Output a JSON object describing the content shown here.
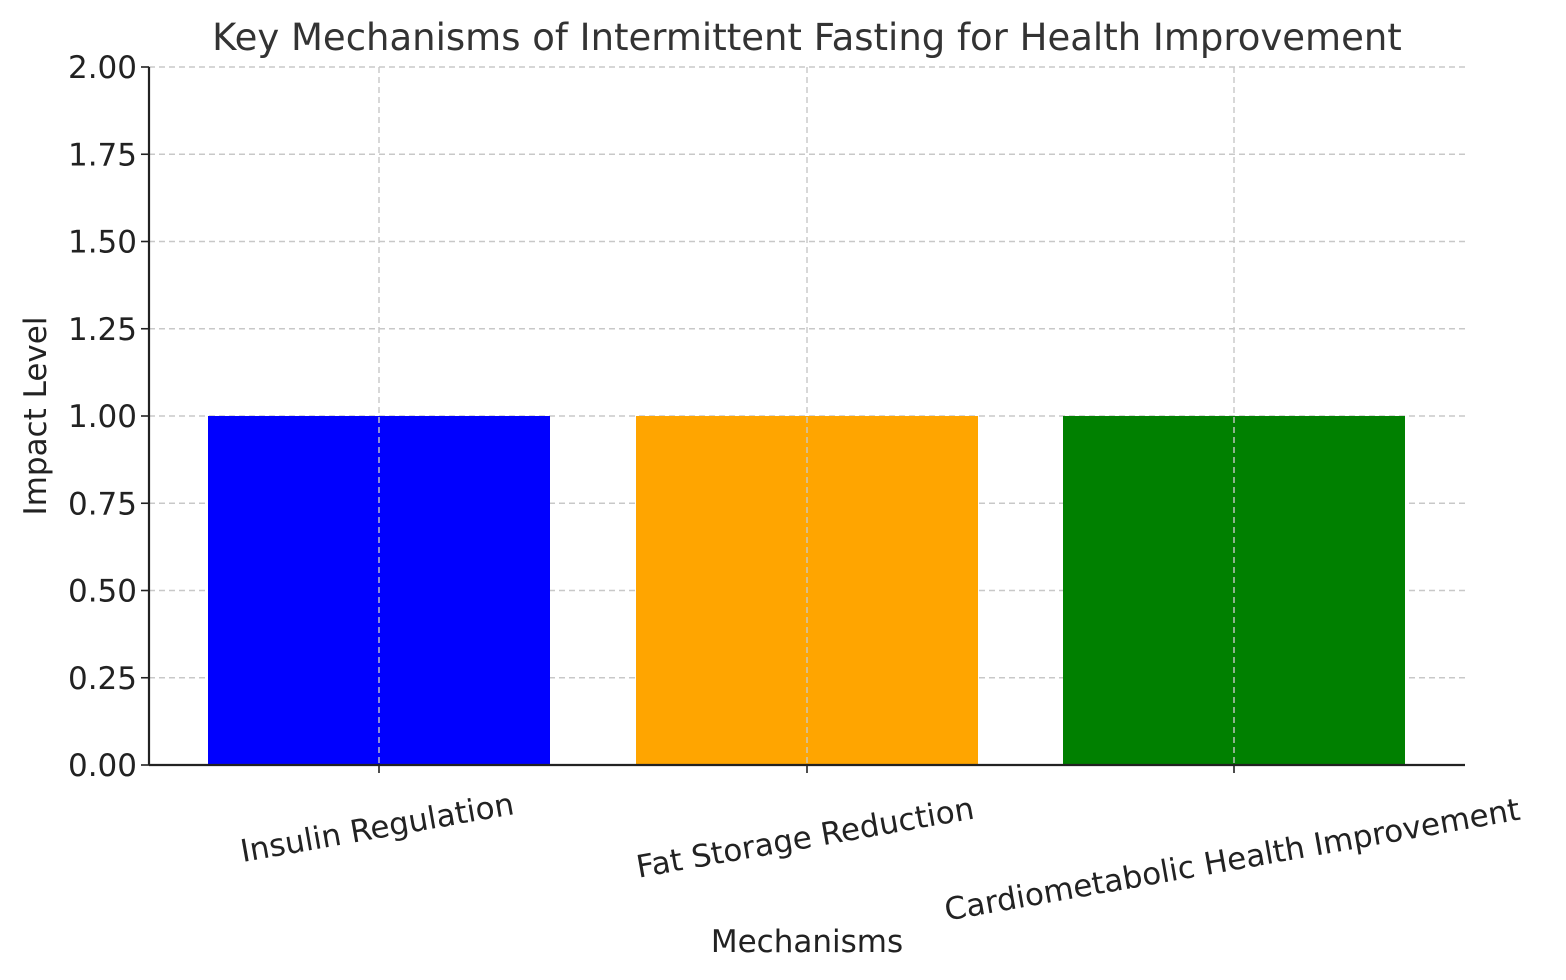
{
  "chart_data": {
    "type": "bar",
    "title": "Key Mechanisms of Intermittent Fasting for Health Improvement",
    "xlabel": "Mechanisms",
    "ylabel": "Impact Level",
    "categories": [
      "Insulin Regulation",
      "Fat Storage Reduction",
      "Cardiometabolic Health Improvement"
    ],
    "values": [
      1,
      1,
      1
    ],
    "colors": [
      "#0000ff",
      "#ffa500",
      "#008000"
    ],
    "ylim": [
      0,
      2.0
    ],
    "yticks": [
      0.0,
      0.25,
      0.5,
      0.75,
      1.0,
      1.25,
      1.5,
      1.75,
      2.0
    ],
    "ytick_labels": [
      "0.00",
      "0.25",
      "0.50",
      "0.75",
      "1.00",
      "1.25",
      "1.50",
      "1.75",
      "2.00"
    ],
    "grid": true,
    "xtick_rotation_deg": -10
  }
}
